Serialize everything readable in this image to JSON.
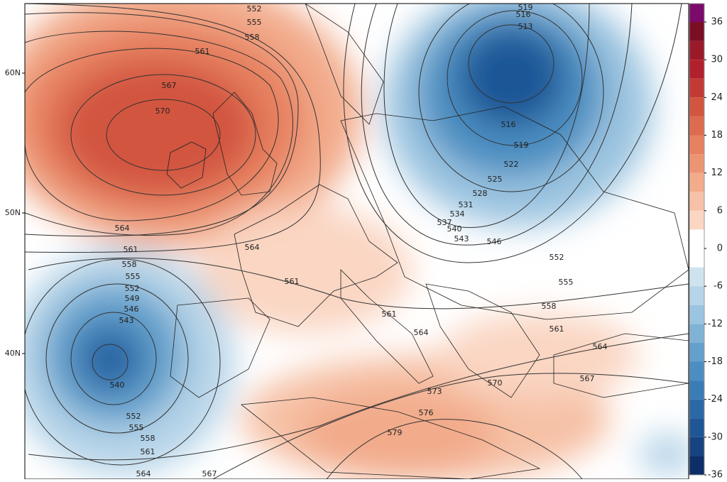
{
  "latitude_labels": [
    "60N",
    "50N",
    "40N"
  ],
  "contour_labels": [
    552,
    555,
    558,
    561,
    567,
    570,
    564,
    564,
    561,
    561,
    558,
    555,
    552,
    549,
    546,
    543,
    540,
    552,
    555,
    558,
    561,
    564,
    567,
    519,
    516,
    513,
    516,
    519,
    522,
    525,
    528,
    531,
    534,
    537,
    540,
    543,
    546,
    552,
    555,
    558,
    561,
    564,
    567,
    561,
    564,
    570,
    573,
    576,
    579
  ],
  "colorbar": {
    "ticks": [
      36,
      30,
      24,
      18,
      12,
      6,
      0,
      -6,
      -12,
      -18,
      -24,
      -30,
      -36
    ],
    "lim": [
      -36,
      36
    ],
    "step": 3,
    "top_color": "#7b0a6a",
    "colors": [
      "#7a0e24",
      "#9a1a2a",
      "#b2202d",
      "#c33a35",
      "#d2553f",
      "#dc6b50",
      "#e6805f",
      "#ec9573",
      "#f2ab8b",
      "#f6c1a6",
      "#fad6c3",
      "#ffffff",
      "#ffffff",
      "#cfe3ef",
      "#b6d4e8",
      "#9bc4e0",
      "#80b2d6",
      "#64a0cc",
      "#4c8ec1",
      "#3a7cb5",
      "#2a68a6",
      "#1f5696",
      "#174480",
      "#0d2e66"
    ]
  }
}
